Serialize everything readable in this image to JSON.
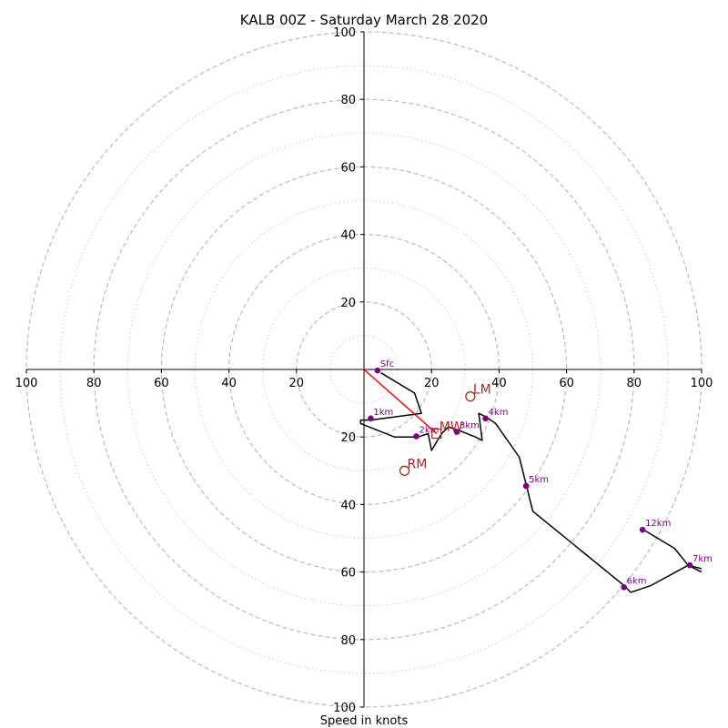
{
  "chart_data": {
    "type": "hodograph",
    "title": "KALB 00Z - Saturday March 28 2020",
    "xlabel": "Speed in knots",
    "ring_speeds_dashed": [
      20,
      40,
      60,
      80,
      100
    ],
    "ring_speeds_dotted": [
      10,
      30,
      50,
      70,
      90
    ],
    "axis_max": 100,
    "tick_labels": {
      "top": [
        "20",
        "40",
        "60",
        "80",
        "100"
      ],
      "bottom": [
        "20",
        "40",
        "60",
        "80",
        "100"
      ],
      "left": [
        "20",
        "40",
        "60",
        "80",
        "100"
      ],
      "right": [
        "20",
        "40",
        "60",
        "80",
        "100"
      ]
    },
    "trace": [
      [
        5,
        -1
      ],
      [
        15,
        -7
      ],
      [
        17,
        -13
      ],
      [
        2,
        -15
      ],
      [
        -1,
        -15
      ],
      [
        -1,
        -16
      ],
      [
        4,
        -18
      ],
      [
        9,
        -20
      ],
      [
        16,
        -20
      ],
      [
        19,
        -19
      ],
      [
        20,
        -24
      ],
      [
        23,
        -19
      ],
      [
        25,
        -17
      ],
      [
        28,
        -18
      ],
      [
        33,
        -20
      ],
      [
        35,
        -21
      ],
      [
        34,
        -13
      ],
      [
        36,
        -14
      ],
      [
        39,
        -16
      ],
      [
        46,
        -26
      ],
      [
        48,
        -34
      ],
      [
        50,
        -42
      ],
      [
        77,
        -64
      ],
      [
        79,
        -66
      ],
      [
        85,
        -64
      ],
      [
        96,
        -58
      ],
      [
        100,
        -60
      ]
    ],
    "upper_trace": [
      [
        82,
        -47
      ],
      [
        92,
        -53
      ],
      [
        96,
        -58
      ],
      [
        100,
        -59
      ]
    ],
    "height_points": [
      {
        "label": "Sfc",
        "u": 4,
        "v": -0.3
      },
      {
        "label": "1km",
        "u": 2,
        "v": -14.5
      },
      {
        "label": "2km",
        "u": 15.5,
        "v": -19.8
      },
      {
        "label": "3km",
        "u": 27.5,
        "v": -18.5
      },
      {
        "label": "4km",
        "u": 36,
        "v": -14.5
      },
      {
        "label": "5km",
        "u": 48,
        "v": -34.5
      },
      {
        "label": "6km",
        "u": 77,
        "v": -64.5
      },
      {
        "label": "7km",
        "u": 96.5,
        "v": -58
      },
      {
        "label": "12km",
        "u": 82.5,
        "v": -47.5
      }
    ],
    "motions": [
      {
        "label": "LM",
        "u": 31.5,
        "v": -8,
        "marker": "circle"
      },
      {
        "label": "MW",
        "u": 21.5,
        "v": -19,
        "marker": "square"
      },
      {
        "label": "RM",
        "u": 12,
        "v": -30,
        "marker": "circle"
      }
    ],
    "storm_vector": {
      "from": [
        0,
        0
      ],
      "to": [
        21.5,
        -19
      ],
      "color": "#ff0000"
    },
    "colors": {
      "trace": "#000000",
      "height_points": "#800080",
      "motions": "#b22222",
      "storm_vector": "#ff0000",
      "rings": "#bbbbbb"
    }
  }
}
